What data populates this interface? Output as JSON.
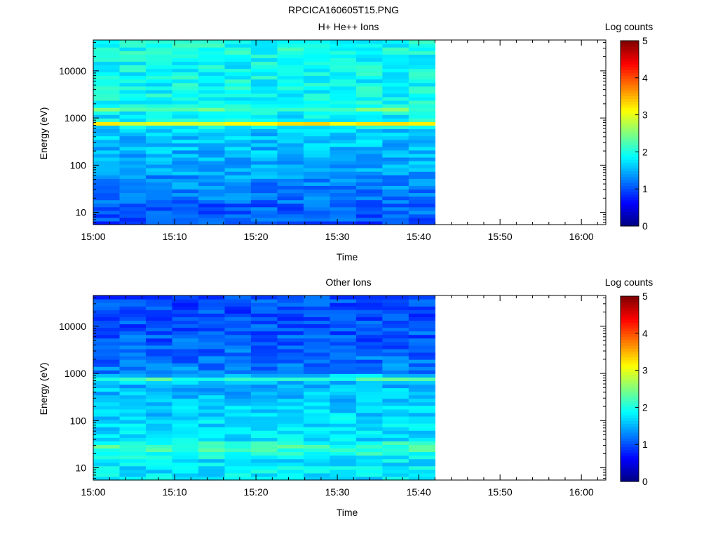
{
  "figure": {
    "title": "RPCICA160605T15.PNG"
  },
  "chart_data": [
    {
      "type": "heatmap",
      "title": "H+ He++ Ions",
      "xlabel": "Time",
      "ylabel": "Energy (eV)",
      "colorbar_label": "Log counts",
      "x_ticks": [
        "15:00",
        "15:10",
        "15:20",
        "15:30",
        "15:40",
        "15:50",
        "16:00"
      ],
      "y_ticks": [
        "10",
        "100",
        "1000",
        "10000"
      ],
      "colorbar_ticks": [
        "0",
        "1",
        "2",
        "3",
        "4",
        "5"
      ],
      "x_range": [
        "15:00",
        "16:03"
      ],
      "y_range_ev": [
        5.5,
        45000
      ],
      "y_scale": "log",
      "color_range": [
        0,
        5
      ],
      "colormap": "jet",
      "data_end_time": "15:42",
      "time_bins": 13,
      "energy_profile": {
        "log_energy": [
          0.76,
          0.9,
          1.0,
          1.2,
          1.4,
          1.6,
          1.8,
          2.0,
          2.2,
          2.4,
          2.6,
          2.8,
          2.86,
          2.89,
          2.92,
          2.95,
          3.0,
          3.1,
          3.19,
          3.3,
          3.5,
          3.8,
          4.1,
          4.4,
          4.65
        ],
        "log_counts": [
          1.0,
          1.05,
          1.1,
          1.1,
          1.25,
          1.3,
          1.4,
          1.45,
          1.5,
          1.55,
          1.6,
          1.7,
          2.4,
          3.3,
          2.5,
          1.95,
          1.8,
          1.85,
          2.35,
          1.95,
          1.9,
          1.9,
          1.9,
          1.95,
          1.95
        ]
      },
      "features": [
        {
          "label": "",
          "energy_ev": 780,
          "log_counts": 3.3
        },
        {
          "label": "",
          "energy_ev": 1550,
          "log_counts": 2.4
        }
      ]
    },
    {
      "type": "heatmap",
      "title": "Other Ions",
      "xlabel": "Time",
      "ylabel": "Energy (eV)",
      "colorbar_label": "Log counts",
      "x_ticks": [
        "15:00",
        "15:10",
        "15:20",
        "15:30",
        "15:40",
        "15:50",
        "16:00"
      ],
      "y_ticks": [
        "10",
        "100",
        "1000",
        "10000"
      ],
      "colorbar_ticks": [
        "0",
        "1",
        "2",
        "3",
        "4",
        "5"
      ],
      "x_range": [
        "15:00",
        "16:03"
      ],
      "y_range_ev": [
        5.5,
        45000
      ],
      "y_scale": "log",
      "color_range": [
        0,
        5
      ],
      "colormap": "jet",
      "data_end_time": "15:42",
      "time_bins": 13,
      "energy_profile": {
        "log_energy": [
          0.76,
          0.9,
          1.0,
          1.15,
          1.3,
          1.4,
          1.5,
          1.6,
          1.8,
          2.0,
          2.2,
          2.4,
          2.6,
          2.8,
          2.86,
          2.89,
          2.92,
          3.0,
          3.2,
          3.4,
          3.6,
          3.8,
          4.0,
          4.2,
          4.4,
          4.65
        ],
        "log_counts": [
          1.75,
          1.8,
          1.8,
          1.75,
          1.95,
          2.25,
          2.1,
          1.75,
          1.75,
          1.7,
          1.65,
          1.6,
          1.55,
          1.5,
          1.9,
          2.25,
          1.9,
          1.3,
          1.2,
          1.15,
          1.1,
          1.05,
          1.05,
          1.0,
          1.0,
          1.0
        ]
      },
      "features": [
        {
          "label": "",
          "energy_ev": 780,
          "log_counts": 2.25
        },
        {
          "label": "",
          "energy_ev": 30,
          "log_counts": 2.25
        }
      ]
    }
  ]
}
